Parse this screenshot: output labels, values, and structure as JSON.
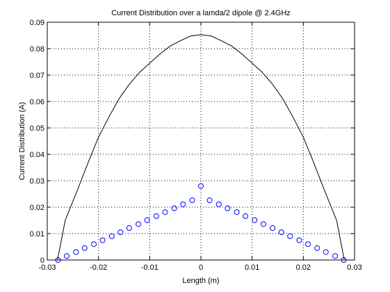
{
  "chart_data": {
    "type": "line",
    "title": "Current Distribution over a lamda/2 dipole @ 2.4GHz",
    "xlabel": "Length (m)",
    "ylabel": "Current Distribution (A)",
    "xlim": [
      -0.03,
      0.03
    ],
    "xticks": [
      -0.03,
      -0.02,
      -0.01,
      0,
      0.01,
      0.02,
      0.03
    ],
    "ylim": [
      0,
      0.09
    ],
    "yticks": [
      0,
      0.01,
      0.02,
      0.03,
      0.04,
      0.05,
      0.06,
      0.07,
      0.08,
      0.09
    ],
    "grid": true,
    "series": [
      {
        "color": "#000000",
        "marker": "none",
        "x": [
          -0.028,
          -0.0265,
          -0.024,
          -0.022,
          -0.02,
          -0.018,
          -0.016,
          -0.014,
          -0.012,
          -0.01,
          -0.008,
          -0.006,
          -0.004,
          -0.002,
          0,
          0.002,
          0.004,
          0.006,
          0.008,
          0.01,
          0.012,
          0.014,
          0.016,
          0.018,
          0.02,
          0.022,
          0.024,
          0.0265,
          0.028
        ],
        "values": [
          0,
          0.015,
          0.027,
          0.037,
          0.0465,
          0.054,
          0.061,
          0.0665,
          0.071,
          0.0745,
          0.078,
          0.081,
          0.083,
          0.0848,
          0.0853,
          0.0848,
          0.083,
          0.081,
          0.078,
          0.0745,
          0.071,
          0.0665,
          0.061,
          0.054,
          0.0465,
          0.037,
          0.027,
          0.015,
          0
        ]
      },
      {
        "color": "#0000ff",
        "marker": "circle",
        "x": [
          -0.0279,
          -0.0262,
          -0.0244,
          -0.0227,
          -0.0209,
          -0.0192,
          -0.0174,
          -0.0157,
          -0.014,
          -0.0122,
          -0.0105,
          -0.0087,
          -0.007,
          -0.0052,
          -0.0035,
          -0.0017,
          0,
          0.0017,
          0.0035,
          0.0052,
          0.007,
          0.0087,
          0.0105,
          0.0122,
          0.014,
          0.0157,
          0.0174,
          0.0192,
          0.0209,
          0.0227,
          0.0244,
          0.0262,
          0.0279
        ],
        "values": [
          0,
          0.0015,
          0.003,
          0.0045,
          0.006,
          0.0075,
          0.009,
          0.0105,
          0.0121,
          0.0136,
          0.0151,
          0.0166,
          0.0181,
          0.0196,
          0.0211,
          0.0226,
          0.028,
          0.0226,
          0.0211,
          0.0196,
          0.0181,
          0.0166,
          0.0151,
          0.0136,
          0.0121,
          0.0105,
          0.009,
          0.0075,
          0.006,
          0.0045,
          0.003,
          0.0015,
          0
        ]
      }
    ]
  }
}
